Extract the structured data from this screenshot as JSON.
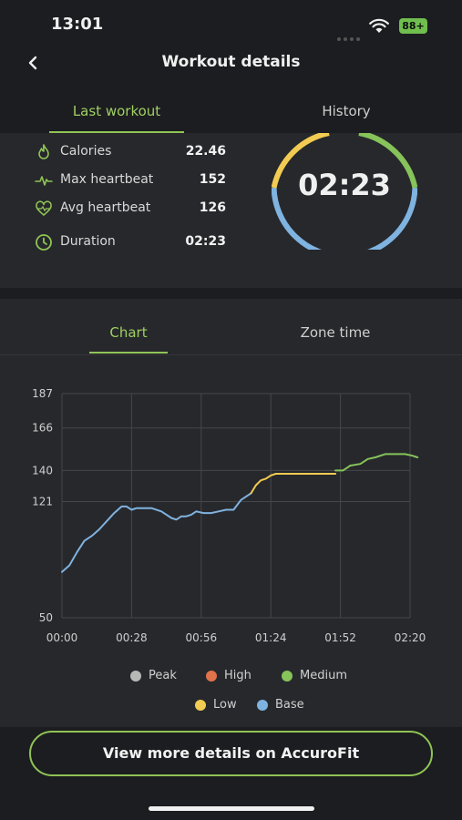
{
  "status_bar": {
    "time": "13:01",
    "battery": "88+"
  },
  "header": {
    "title": "Workout details"
  },
  "tabs": [
    {
      "label": "Last workout",
      "active": true
    },
    {
      "label": "History",
      "active": false
    }
  ],
  "summary": {
    "stats": [
      {
        "icon": "flame-icon",
        "label": "Calories",
        "value": "22.46"
      },
      {
        "icon": "heartbeat-icon",
        "label": "Max heartbeat",
        "value": "152"
      },
      {
        "icon": "heart-pulse-icon",
        "label": "Avg heartbeat",
        "value": "126"
      },
      {
        "icon": "clock-icon",
        "label": "Duration",
        "value": "02:23"
      }
    ],
    "ring_time": "02:23"
  },
  "subtabs": [
    {
      "label": "Chart",
      "active": true
    },
    {
      "label": "Zone time",
      "active": false
    }
  ],
  "chart_data": {
    "type": "line",
    "title": "",
    "xlabel": "",
    "ylabel": "",
    "ylim": [
      50,
      187
    ],
    "yticks": [
      "187",
      "166",
      "140",
      "121",
      "50"
    ],
    "xticks": [
      "00:00",
      "00:28",
      "00:56",
      "01:24",
      "01:52",
      "02:20"
    ],
    "grid": true,
    "x_unit": "seconds",
    "series": [
      {
        "name": "Base",
        "color": "#7fb3e0",
        "x": [
          0,
          3,
          6,
          9,
          12,
          15,
          18,
          21,
          24,
          26,
          28,
          30,
          33,
          36,
          40,
          44,
          46,
          48,
          50,
          52,
          54,
          57,
          60,
          63,
          66,
          69,
          72,
          75,
          76
        ],
        "y": [
          78,
          82,
          90,
          97,
          100,
          104,
          109,
          114,
          118,
          118,
          116,
          117,
          117,
          117,
          115,
          111,
          110,
          112,
          112,
          113,
          115,
          114,
          114,
          115,
          116,
          116,
          122,
          125,
          126
        ]
      },
      {
        "name": "Low",
        "color": "#f2cc52",
        "x": [
          76,
          78,
          80,
          82,
          84,
          86,
          90,
          95,
          100,
          105,
          110
        ],
        "y": [
          126,
          131,
          134,
          135,
          137,
          138,
          138,
          138,
          138,
          138,
          138
        ]
      },
      {
        "name": "Medium",
        "color": "#86c35a",
        "x": [
          110,
          113,
          116,
          120,
          123,
          126,
          130,
          134,
          138,
          141,
          143
        ],
        "y": [
          140,
          140,
          143,
          144,
          147,
          148,
          150,
          150,
          150,
          149,
          148
        ]
      }
    ],
    "legend": [
      {
        "label": "Peak",
        "color": "#b8b8b8"
      },
      {
        "label": "High",
        "color": "#e0734a"
      },
      {
        "label": "Medium",
        "color": "#86c35a"
      },
      {
        "label": "Low",
        "color": "#f2cc52"
      },
      {
        "label": "Base",
        "color": "#7fb3e0"
      }
    ]
  },
  "cta": {
    "label": "View more details on AccuroFit"
  },
  "colors": {
    "accent": "#8fc455",
    "background": "#1c1d20",
    "panel": "#27282c"
  }
}
